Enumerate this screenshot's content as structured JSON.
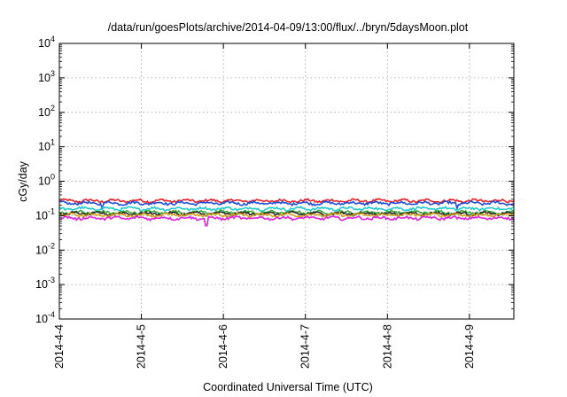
{
  "chart_data": {
    "type": "line",
    "title": "/data/run/goesPlots/archive/2014-04-09/13:00/flux/../bryn/5daysMoon.plot",
    "xlabel": "Coordinated Universal Time (UTC)",
    "ylabel": "cGy/day",
    "yscale": "log",
    "ylim": [
      0.0001,
      10000
    ],
    "xlim": [
      "2014-04-04 00:00",
      "2014-04-09 13:00"
    ],
    "grid": true,
    "legend": "none",
    "xticks": [
      {
        "at": "2014-04-04",
        "label": "2014-4-4"
      },
      {
        "at": "2014-04-05",
        "label": "2014-4-5"
      },
      {
        "at": "2014-04-06",
        "label": "2014-4-6"
      },
      {
        "at": "2014-04-07",
        "label": "2014-4-7"
      },
      {
        "at": "2014-04-08",
        "label": "2014-4-8"
      },
      {
        "at": "2014-04-09",
        "label": "2014-4-9"
      }
    ],
    "yticks": [
      {
        "value": 0.0001,
        "base": "10",
        "exp": "-4"
      },
      {
        "value": 0.001,
        "base": "10",
        "exp": "-3"
      },
      {
        "value": 0.01,
        "base": "10",
        "exp": "-2"
      },
      {
        "value": 0.1,
        "base": "10",
        "exp": "-1"
      },
      {
        "value": 1,
        "base": "10",
        "exp": "0"
      },
      {
        "value": 10,
        "base": "10",
        "exp": "1"
      },
      {
        "value": 100,
        "base": "10",
        "exp": "2"
      },
      {
        "value": 1000,
        "base": "10",
        "exp": "3"
      },
      {
        "value": 10000,
        "base": "10",
        "exp": "4"
      }
    ],
    "series": [
      {
        "color": "#e8202a",
        "level": 0.27
      },
      {
        "color": "#1f4fd8",
        "level": 0.23
      },
      {
        "color": "#1fc9c9",
        "level": 0.16
      },
      {
        "color": "#3aaa3a",
        "level": 0.125
      },
      {
        "color": "#2a2a2a",
        "level": 0.115
      },
      {
        "color": "#d4a020",
        "level": 0.105
      },
      {
        "color": "#e020e0",
        "level": 0.085
      }
    ]
  }
}
